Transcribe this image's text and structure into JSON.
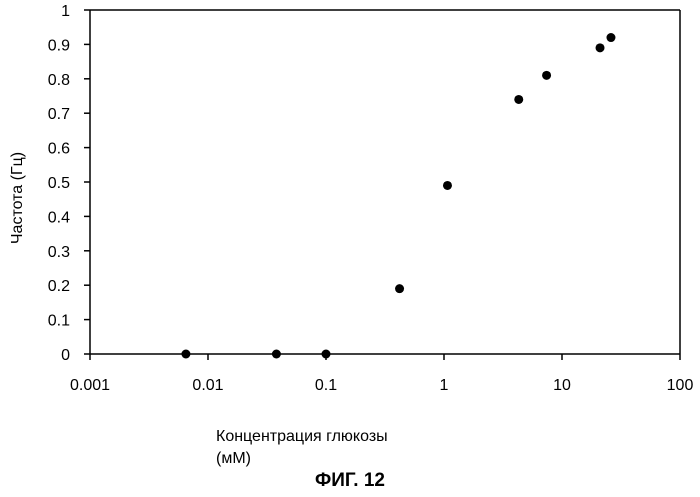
{
  "chart_data": {
    "type": "scatter",
    "xscale": "log",
    "xlim": [
      0.001,
      100
    ],
    "ylim": [
      0,
      1
    ],
    "x_ticks": [
      0.001,
      0.01,
      0.1,
      1,
      10,
      100
    ],
    "x_tick_labels": [
      "0.001",
      "0.01",
      "0.1",
      "1",
      "10",
      "100"
    ],
    "y_ticks": [
      0,
      0.1,
      0.2,
      0.3,
      0.4,
      0.5,
      0.6,
      0.7,
      0.8,
      0.9,
      1
    ],
    "y_tick_labels": [
      "0",
      "0.1",
      "0.2",
      "0.3",
      "0.4",
      "0.5",
      "0.6",
      "0.7",
      "0.8",
      "0.9",
      "1"
    ],
    "ylabel": "Частота (Гц)",
    "xlabel_line1": "Концентрация глюкозы",
    "xlabel_line2": "(мМ)",
    "points": [
      {
        "x": 0.0065,
        "y": 0.0
      },
      {
        "x": 0.038,
        "y": 0.0
      },
      {
        "x": 0.1,
        "y": 0.0
      },
      {
        "x": 0.42,
        "y": 0.19
      },
      {
        "x": 1.07,
        "y": 0.49
      },
      {
        "x": 4.3,
        "y": 0.74
      },
      {
        "x": 7.4,
        "y": 0.81
      },
      {
        "x": 21,
        "y": 0.89
      },
      {
        "x": 26,
        "y": 0.92
      }
    ],
    "grid": false
  },
  "figure_caption": "ФИГ. 12"
}
